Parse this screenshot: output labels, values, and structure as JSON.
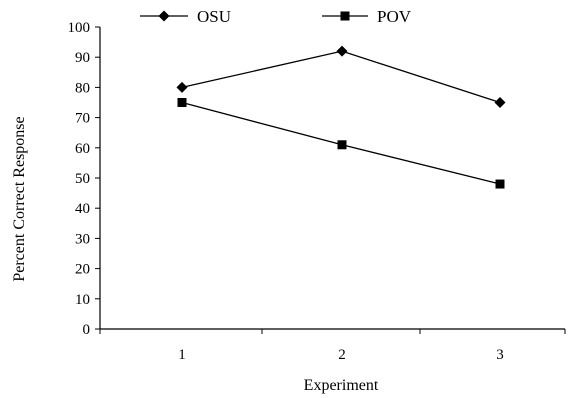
{
  "chart_data": {
    "type": "line",
    "title": "",
    "xlabel": "Experiment",
    "ylabel": "Percent Correct Response",
    "x": [
      1,
      2,
      3
    ],
    "categories": [
      "1",
      "2",
      "3"
    ],
    "ylim": [
      0,
      100
    ],
    "yticks": [
      "0",
      "10",
      "20",
      "30",
      "40",
      "50",
      "60",
      "70",
      "80",
      "90",
      "100"
    ],
    "grid": false,
    "legend_position": "top",
    "series": [
      {
        "name": "OSU",
        "marker": "diamond",
        "color": "#000000",
        "values": [
          80,
          92,
          75
        ]
      },
      {
        "name": "POV",
        "marker": "square",
        "color": "#000000",
        "values": [
          75,
          61,
          48
        ]
      }
    ]
  }
}
